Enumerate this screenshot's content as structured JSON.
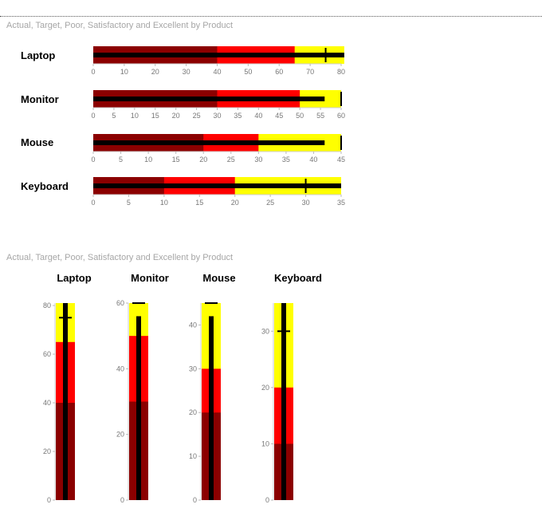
{
  "chart_data": [
    {
      "type": "bullet",
      "orientation": "horizontal",
      "title": "Actual, Target, Poor, Satisfactory and Excellent by Product",
      "range_colors": {
        "poor": "#8b0000",
        "satisfactory": "#ff0000",
        "excellent": "#ffff00"
      },
      "actual_color": "#000000",
      "target_color": "#000000",
      "products": [
        {
          "name": "Laptop",
          "poor": 40,
          "satisfactory": 65,
          "excellent": 81,
          "actual": 81,
          "target": 75,
          "ticks": [
            "0",
            "10",
            "20",
            "30",
            "40",
            "50",
            "60",
            "70",
            "80"
          ]
        },
        {
          "name": "Monitor",
          "poor": 30,
          "satisfactory": 50,
          "excellent": 60,
          "actual": 56,
          "target": 60,
          "ticks": [
            "0",
            "5",
            "10",
            "15",
            "20",
            "25",
            "30",
            "35",
            "40",
            "45",
            "50",
            "55",
            "60"
          ]
        },
        {
          "name": "Mouse",
          "poor": 20,
          "satisfactory": 30,
          "excellent": 45,
          "actual": 42,
          "target": 45,
          "ticks": [
            "0",
            "5",
            "10",
            "15",
            "20",
            "25",
            "30",
            "35",
            "40",
            "45"
          ]
        },
        {
          "name": "Keyboard",
          "poor": 10,
          "satisfactory": 20,
          "excellent": 35,
          "actual": 35,
          "target": 30,
          "ticks": [
            "0",
            "5",
            "10",
            "15",
            "20",
            "25",
            "30",
            "35"
          ]
        }
      ]
    },
    {
      "type": "bullet",
      "orientation": "vertical",
      "title": "Actual, Target, Poor, Satisfactory and Excellent by Product",
      "products": [
        {
          "name": "Laptop",
          "ticks": [
            "0",
            "20",
            "40",
            "60",
            "80"
          ]
        },
        {
          "name": "Monitor",
          "ticks": [
            "0",
            "20",
            "40",
            "60"
          ]
        },
        {
          "name": "Mouse",
          "ticks": [
            "0",
            "10",
            "20",
            "30",
            "40"
          ]
        },
        {
          "name": "Keyboard",
          "ticks": [
            "0",
            "10",
            "20",
            "30"
          ]
        }
      ]
    }
  ]
}
